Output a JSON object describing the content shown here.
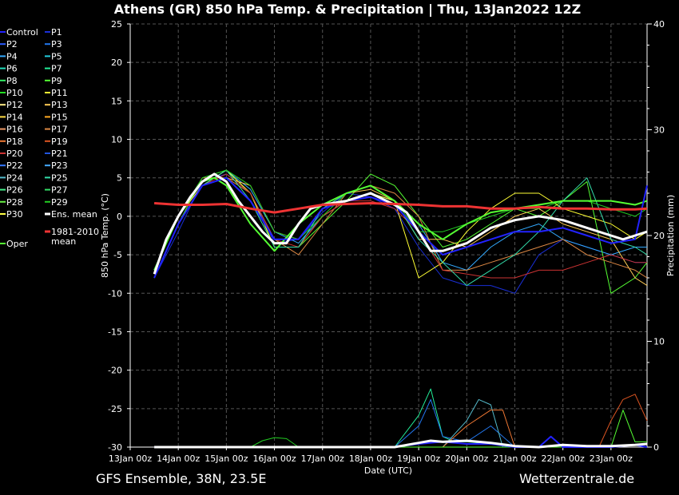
{
  "header": {
    "title": "Athens  (GR)  850 hPa Temp. & Precipitation | Thu, 13Jan2022 12Z"
  },
  "footer": {
    "model": "GFS Ensemble, 38N, 23.5E",
    "source": "Wetterzentrale.de"
  },
  "legend": {
    "members": [
      {
        "name": "Control",
        "color": "#2222ff"
      },
      {
        "name": "P1",
        "color": "#1a2fd6"
      },
      {
        "name": "P2",
        "color": "#2b5bff"
      },
      {
        "name": "P3",
        "color": "#2277ee"
      },
      {
        "name": "P4",
        "color": "#33aaff"
      },
      {
        "name": "P5",
        "color": "#22ccdd"
      },
      {
        "name": "P6",
        "color": "#22ddbb"
      },
      {
        "name": "P7",
        "color": "#22ee99"
      },
      {
        "name": "P8",
        "color": "#33ee66"
      },
      {
        "name": "P9",
        "color": "#55ff33"
      },
      {
        "name": "P10",
        "color": "#22dd22"
      },
      {
        "name": "P11",
        "color": "#ffff33"
      },
      {
        "name": "P12",
        "color": "#ffee88"
      },
      {
        "name": "P13",
        "color": "#ffcc55"
      },
      {
        "name": "P14",
        "color": "#ffdd44"
      },
      {
        "name": "P15",
        "color": "#ffaa22"
      },
      {
        "name": "P16",
        "color": "#ee9966"
      },
      {
        "name": "P17",
        "color": "#dd8844"
      },
      {
        "name": "P18",
        "color": "#ee7733"
      },
      {
        "name": "P19",
        "color": "#dd5522"
      },
      {
        "name": "P20",
        "color": "#cc3333"
      },
      {
        "name": "P21",
        "color": "#2255dd"
      },
      {
        "name": "P22",
        "color": "#3377ff"
      },
      {
        "name": "P23",
        "color": "#44aaff"
      },
      {
        "name": "P24",
        "color": "#55bbcc"
      },
      {
        "name": "P25",
        "color": "#33ddaa"
      },
      {
        "name": "P26",
        "color": "#44ee88"
      },
      {
        "name": "P27",
        "color": "#33dd66"
      },
      {
        "name": "P28",
        "color": "#66ee44"
      },
      {
        "name": "P29",
        "color": "#22cc22"
      },
      {
        "name": "P30",
        "color": "#ffff44"
      },
      {
        "name": "Ens. mean",
        "color": "#ffffff"
      }
    ],
    "climo": {
      "name": "1981-2010 mean",
      "line1": "1981-2010",
      "line2": "mean",
      "color": "#ee3333"
    },
    "oper": {
      "name": "Oper",
      "color": "#55ff33"
    }
  },
  "chart_data": {
    "type": "line",
    "title": "Athens  (GR)  850 hPa Temp. & Precipitation | Thu, 13Jan2022 12Z",
    "xlabel": "Date (UTC)",
    "ylabel": "850 hPa Temp. (°C)",
    "ylabel_right": "Precipitation (mm)",
    "x_ticks": [
      "13Jan 00z",
      "14Jan 00z",
      "15Jan 00z",
      "16Jan 00z",
      "17Jan 00z",
      "18Jan 00z",
      "19Jan 00z",
      "20Jan 00z",
      "21Jan 00z",
      "22Jan 00z",
      "23Jan 00z"
    ],
    "xlim_days": [
      0,
      10.75
    ],
    "ylim": [
      -30,
      25
    ],
    "y_ticks": [
      25,
      20,
      15,
      10,
      5,
      0,
      -5,
      -10,
      -15,
      -20,
      -25,
      -30
    ],
    "y2lim": [
      0,
      40
    ],
    "y2_ticks": [
      40,
      30,
      20,
      10,
      0
    ],
    "grid": true,
    "legend_position": "left",
    "series": [
      {
        "name": "Ens. mean",
        "color": "#ffffff",
        "width": 3,
        "x": [
          0.5,
          0.75,
          1,
          1.25,
          1.5,
          1.75,
          2,
          2.25,
          2.5,
          2.75,
          3,
          3.25,
          3.5,
          3.75,
          4,
          4.5,
          5,
          5.5,
          5.75,
          6,
          6.25,
          6.5,
          6.75,
          7,
          7.25,
          7.5,
          7.75,
          8,
          8.5,
          9,
          9.5,
          10,
          10.25,
          10.5,
          10.75
        ],
        "y": [
          -7.5,
          -3,
          0,
          2.5,
          4.5,
          5.5,
          4.5,
          2,
          0,
          -2,
          -3.5,
          -3.5,
          -1,
          1,
          1.5,
          2,
          3,
          1.5,
          0.5,
          -2,
          -4.5,
          -4.5,
          -4,
          -3.5,
          -2.5,
          -1.5,
          -1,
          -0.5,
          0,
          -0.5,
          -1.5,
          -2.5,
          -3,
          -2.5,
          -2
        ]
      },
      {
        "name": "1981-2010 mean",
        "color": "#ee3333",
        "width": 3,
        "x": [
          0.5,
          1,
          1.5,
          2,
          2.5,
          3,
          3.5,
          4,
          4.5,
          5,
          5.5,
          6,
          6.5,
          7,
          7.5,
          8,
          8.5,
          9,
          9.5,
          10,
          10.5,
          10.75
        ],
        "y": [
          1.7,
          1.5,
          1.5,
          1.6,
          1.0,
          0.5,
          1.0,
          1.5,
          1.6,
          1.7,
          1.6,
          1.5,
          1.3,
          1.3,
          1.0,
          1.0,
          1.2,
          1.0,
          1.0,
          0.9,
          0.9,
          1.0
        ]
      },
      {
        "name": "Oper",
        "color": "#55ff33",
        "width": 2,
        "x": [
          0.5,
          1,
          1.5,
          1.75,
          2,
          2.5,
          3,
          3.5,
          4,
          4.5,
          5,
          5.5,
          6,
          6.5,
          7,
          7.5,
          8,
          8.5,
          9,
          9.5,
          10,
          10.5,
          10.75
        ],
        "y": [
          -7,
          0,
          4.5,
          5,
          4,
          -1,
          -4.5,
          -1,
          1.5,
          3,
          4,
          2,
          -1,
          -3,
          -1,
          0.5,
          1,
          1.5,
          2,
          2,
          2,
          1.5,
          2
        ]
      },
      {
        "name": "Control",
        "color": "#2222ff",
        "width": 2,
        "x": [
          0.5,
          1,
          1.5,
          2,
          2.5,
          3,
          3.5,
          4,
          4.5,
          5,
          5.5,
          6,
          6.5,
          7,
          7.5,
          8,
          8.5,
          9,
          9.5,
          10,
          10.5,
          10.75
        ],
        "y": [
          -8,
          -1,
          4,
          5,
          2,
          -3,
          -3,
          1,
          2,
          2.5,
          1.5,
          -2,
          -5,
          -4,
          -3,
          -2,
          -2,
          -1.5,
          -2.5,
          -3.5,
          -3,
          4
        ]
      },
      {
        "name": "P1",
        "color": "#1a2fd6",
        "width": 1,
        "x": [
          0.5,
          1,
          1.5,
          2,
          2.5,
          3,
          3.5,
          4,
          4.5,
          5,
          5.5,
          6,
          6.5,
          7,
          7.5,
          8,
          8.5,
          9,
          9.5,
          10,
          10.5,
          10.75
        ],
        "y": [
          -8,
          -2,
          4.5,
          5.5,
          3,
          -3.5,
          -3,
          0.5,
          3,
          2.5,
          1,
          -4,
          -8,
          -9,
          -9,
          -10,
          -5,
          -3,
          -4,
          -5,
          -6,
          -6
        ]
      },
      {
        "name": "P4",
        "color": "#33aaff",
        "width": 1,
        "x": [
          0.5,
          1,
          1.5,
          2,
          2.5,
          3,
          3.5,
          4,
          4.5,
          5,
          5.5,
          6,
          6.5,
          7,
          7.5,
          8,
          8.5,
          9,
          9.5,
          10,
          10.5,
          10.75
        ],
        "y": [
          -7,
          0,
          4,
          6,
          3.5,
          -2,
          -3.5,
          0,
          2,
          3,
          2,
          -1,
          -6,
          -7,
          -4,
          -2,
          -1,
          -3,
          -4,
          -5,
          -4,
          -4
        ]
      },
      {
        "name": "P9",
        "color": "#55ff33",
        "width": 1,
        "x": [
          0.5,
          1,
          1.5,
          2,
          2.5,
          3,
          3.5,
          4,
          4.5,
          5,
          5.5,
          6,
          6.5,
          7,
          7.5,
          8,
          8.5,
          9,
          9.5,
          10,
          10.5,
          10.75
        ],
        "y": [
          -8,
          -1,
          5,
          6,
          3,
          -4,
          -4,
          -1,
          2,
          5.5,
          4,
          0,
          -4,
          -3,
          -1,
          1,
          0,
          2,
          4.5,
          -10,
          -8,
          -6
        ]
      },
      {
        "name": "P11",
        "color": "#ffff33",
        "width": 1,
        "x": [
          0.5,
          1,
          1.5,
          2,
          2.5,
          3,
          3.5,
          4,
          4.5,
          5,
          5.5,
          6,
          6.5,
          7,
          7.5,
          8,
          8.5,
          9,
          9.5,
          10,
          10.5,
          10.75
        ],
        "y": [
          -8,
          -1,
          4,
          6,
          3,
          -4,
          -4,
          0,
          2,
          3,
          2,
          -8,
          -6,
          -2,
          1,
          3,
          3,
          1,
          0,
          -1,
          -3,
          -2
        ]
      },
      {
        "name": "P13",
        "color": "#ffcc55",
        "width": 1,
        "x": [
          0.5,
          1,
          1.5,
          2,
          2.5,
          3,
          3.5,
          4,
          4.5,
          5,
          5.5,
          6,
          6.5,
          7,
          7.5,
          8,
          8.5,
          9,
          9.5,
          10,
          10.5,
          10.75
        ],
        "y": [
          -7,
          0,
          4,
          5,
          4,
          -2,
          -3,
          1,
          3,
          3.5,
          2,
          -3,
          -3,
          -4,
          -2,
          0,
          1,
          -1,
          -2,
          -3,
          -8,
          -9
        ]
      },
      {
        "name": "P17",
        "color": "#dd8844",
        "width": 1,
        "x": [
          0.5,
          1,
          1.5,
          2,
          2.5,
          3,
          3.5,
          4,
          4.5,
          5,
          5.5,
          6,
          6.5,
          7,
          7.5,
          8,
          8.5,
          9,
          9.5,
          10,
          10.5,
          10.75
        ],
        "y": [
          -7,
          0,
          5,
          5,
          3,
          -3,
          -5,
          -1,
          3,
          4,
          3,
          0,
          -7,
          -7,
          -6,
          -5,
          -4,
          -3,
          -5,
          -6,
          -7,
          -8
        ]
      },
      {
        "name": "P20",
        "color": "#cc3333",
        "width": 1,
        "x": [
          0.5,
          1,
          1.5,
          2,
          2.5,
          3,
          3.5,
          4,
          4.5,
          5,
          5.5,
          6,
          6.5,
          7,
          7.5,
          8,
          8.5,
          9,
          9.5,
          10,
          10.5,
          10.75
        ],
        "y": [
          -8,
          -1,
          4,
          5.5,
          3,
          -3,
          -4,
          0,
          2,
          2,
          1,
          -2,
          -7,
          -7.5,
          -8,
          -8,
          -7,
          -7,
          -6,
          -5,
          -6,
          -6
        ]
      },
      {
        "name": "P25",
        "color": "#33ddaa",
        "width": 1,
        "x": [
          0.5,
          1,
          1.5,
          2,
          2.5,
          3,
          3.5,
          4,
          4.5,
          5,
          5.5,
          6,
          6.5,
          7,
          7.5,
          8,
          8.5,
          9,
          9.5,
          10,
          10.5,
          10.75
        ],
        "y": [
          -8,
          -1,
          4,
          6,
          2,
          -4,
          -4,
          1,
          3,
          4,
          2,
          -3,
          -6,
          -9,
          -7,
          -5,
          -2,
          2,
          5,
          -3,
          -4,
          -5
        ]
      },
      {
        "name": "P29",
        "color": "#22cc22",
        "width": 1,
        "x": [
          0.5,
          1,
          1.5,
          2,
          2.5,
          3,
          3.5,
          4,
          4.5,
          5,
          5.5,
          6,
          6.5,
          7,
          7.5,
          8,
          8.5,
          9,
          9.5,
          10,
          10.5,
          10.75
        ],
        "y": [
          -7,
          0,
          5,
          6,
          4,
          -2,
          -3,
          0,
          3,
          4,
          2,
          -2,
          -2,
          -1,
          0,
          1,
          1,
          2,
          2,
          1,
          0,
          1
        ]
      }
    ],
    "precip_series": [
      {
        "name": "Control",
        "color": "#2222ff",
        "width": 2,
        "x": [
          0.5,
          5.5,
          6,
          6.5,
          7,
          7.5,
          8,
          8.5,
          8.75,
          9,
          9.5,
          10,
          10.5,
          10.75
        ],
        "y": [
          0,
          0,
          0.3,
          0.5,
          0.3,
          0.3,
          0,
          0,
          1,
          0,
          0,
          0,
          0.2,
          0
        ]
      },
      {
        "name": "Ens. mean",
        "color": "#ffffff",
        "width": 3,
        "x": [
          0.5,
          2.5,
          3,
          5.5,
          6,
          6.25,
          6.5,
          7,
          7.5,
          8,
          8.5,
          9,
          9.5,
          10,
          10.5,
          10.75
        ],
        "y": [
          0,
          0,
          0,
          0,
          0.4,
          0.6,
          0.5,
          0.6,
          0.4,
          0.1,
          0,
          0.2,
          0.1,
          0.1,
          0.2,
          0.3
        ]
      },
      {
        "name": "P7",
        "color": "#22ee99",
        "width": 1,
        "x": [
          0.5,
          5.5,
          6,
          6.25,
          6.5,
          6.75,
          7,
          7.5,
          8
        ],
        "y": [
          0,
          0,
          3,
          5.5,
          1,
          0.5,
          0.5,
          0.3,
          0
        ]
      },
      {
        "name": "P3",
        "color": "#2277ee",
        "width": 1,
        "x": [
          0.5,
          5.5,
          6,
          6.25,
          6.5,
          7,
          7.5,
          8
        ],
        "y": [
          0,
          0,
          2,
          4.5,
          1,
          0.5,
          2,
          0
        ]
      },
      {
        "name": "P24",
        "color": "#55bbcc",
        "width": 1,
        "x": [
          0.5,
          6.5,
          7,
          7.25,
          7.5,
          7.75
        ],
        "y": [
          0,
          0,
          2.5,
          4.5,
          4,
          0
        ]
      },
      {
        "name": "P18",
        "color": "#ee7733",
        "width": 1,
        "x": [
          0.5,
          6.5,
          7,
          7.5,
          7.75,
          8
        ],
        "y": [
          0,
          0,
          2,
          3.5,
          3.5,
          0
        ]
      },
      {
        "name": "P19",
        "color": "#dd5522",
        "width": 1,
        "x": [
          0.5,
          9.75,
          10,
          10.25,
          10.5,
          10.75
        ],
        "y": [
          0,
          0,
          2.5,
          4.5,
          5,
          2.5
        ]
      },
      {
        "name": "P9",
        "color": "#55ff33",
        "width": 1,
        "x": [
          0.5,
          10,
          10.25,
          10.5,
          10.75
        ],
        "y": [
          0,
          0,
          3.5,
          0.5,
          0.5
        ]
      },
      {
        "name": "P29",
        "color": "#22cc22",
        "width": 1,
        "x": [
          0.5,
          2.5,
          2.75,
          3,
          3.25,
          3.5
        ],
        "y": [
          0,
          0,
          0.6,
          0.9,
          0.8,
          0
        ]
      }
    ]
  }
}
